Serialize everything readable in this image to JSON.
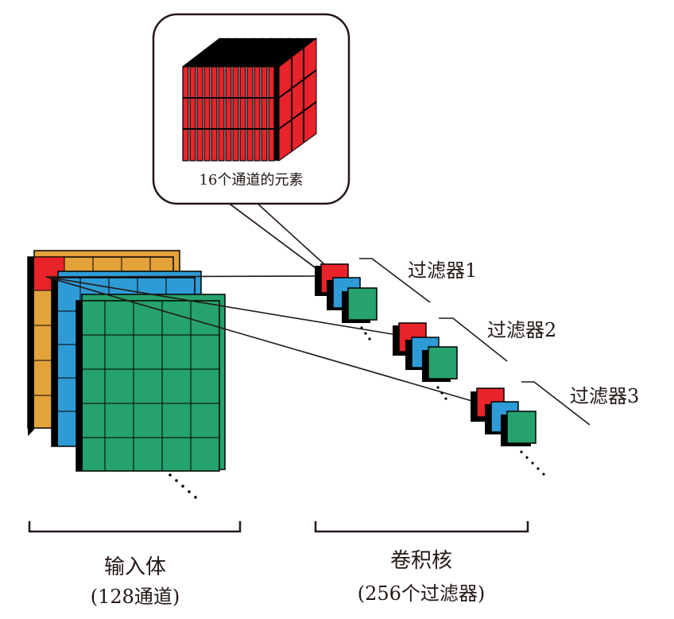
{
  "callout": {
    "caption": "16个通道的元素"
  },
  "filters": [
    {
      "label": "过滤器1"
    },
    {
      "label": "过滤器2"
    },
    {
      "label": "过滤器3"
    }
  ],
  "input_volume": {
    "title": "输入体",
    "subtitle": "(128通道)"
  },
  "kernels": {
    "title": "卷积核",
    "subtitle": "(256个过滤器)"
  },
  "colors": {
    "orange": "#E3A33A",
    "blue": "#2E9BD6",
    "green": "#25A26D",
    "red": "#E8232A",
    "outline": "#000000"
  }
}
